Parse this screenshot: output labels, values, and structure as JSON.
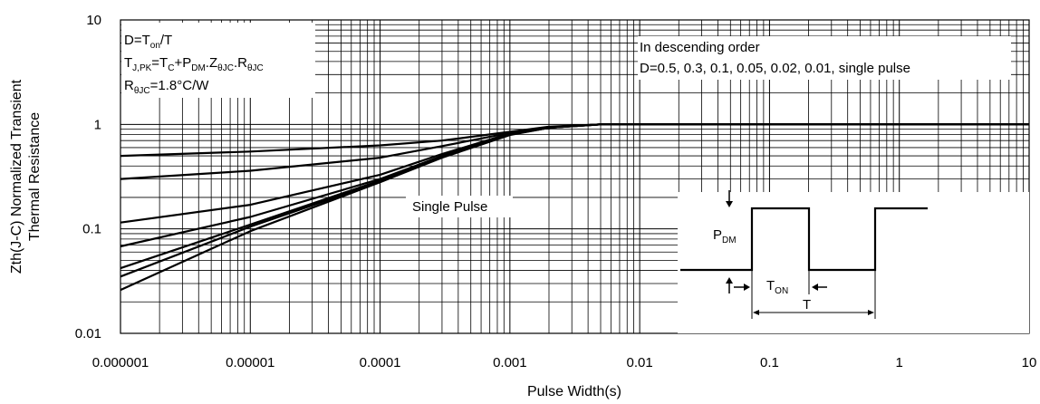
{
  "chart_data": {
    "type": "line",
    "x_scale": "log",
    "y_scale": "log",
    "xlim": [
      1e-06,
      10
    ],
    "ylim": [
      0.01,
      10
    ],
    "xlabel": "Pulse Width(s)",
    "ylabel_line1": "Zth(J-C) Normalized Transient",
    "ylabel_line2": "Thermal Resistance",
    "grid": true,
    "x_ticks": [
      {
        "v": 1e-06,
        "label": "0.000001"
      },
      {
        "v": 1e-05,
        "label": "0.00001"
      },
      {
        "v": 0.0001,
        "label": "0.0001"
      },
      {
        "v": 0.001,
        "label": "0.001"
      },
      {
        "v": 0.01,
        "label": "0.01"
      },
      {
        "v": 0.1,
        "label": "0.1"
      },
      {
        "v": 1,
        "label": "1"
      },
      {
        "v": 10,
        "label": "10"
      }
    ],
    "y_ticks": [
      {
        "v": 0.01,
        "label": "0.01"
      },
      {
        "v": 0.1,
        "label": "0.1"
      },
      {
        "v": 1,
        "label": "1"
      },
      {
        "v": 10,
        "label": "10"
      }
    ],
    "series": [
      {
        "points": [
          [
            1e-06,
            0.5
          ],
          [
            1e-05,
            0.55
          ],
          [
            0.0001,
            0.63
          ],
          [
            0.0003,
            0.7
          ],
          [
            0.001,
            0.85
          ],
          [
            0.002,
            0.95
          ],
          [
            0.005,
            1.0
          ],
          [
            10,
            1.0
          ]
        ]
      },
      {
        "points": [
          [
            1e-06,
            0.3
          ],
          [
            1e-05,
            0.36
          ],
          [
            0.0001,
            0.48
          ],
          [
            0.0003,
            0.62
          ],
          [
            0.001,
            0.83
          ],
          [
            0.002,
            0.94
          ],
          [
            0.005,
            1.0
          ],
          [
            10,
            1.0
          ]
        ]
      },
      {
        "points": [
          [
            1e-06,
            0.115
          ],
          [
            1e-05,
            0.17
          ],
          [
            0.0001,
            0.33
          ],
          [
            0.0003,
            0.52
          ],
          [
            0.001,
            0.82
          ],
          [
            0.002,
            0.94
          ],
          [
            0.005,
            1.0
          ],
          [
            10,
            1.0
          ]
        ]
      },
      {
        "points": [
          [
            1e-06,
            0.068
          ],
          [
            1e-05,
            0.13
          ],
          [
            0.0001,
            0.3
          ],
          [
            0.0003,
            0.5
          ],
          [
            0.001,
            0.81
          ],
          [
            0.002,
            0.93
          ],
          [
            0.005,
            1.0
          ],
          [
            10,
            1.0
          ]
        ]
      },
      {
        "points": [
          [
            1e-06,
            0.042
          ],
          [
            1e-05,
            0.11
          ],
          [
            0.0001,
            0.29
          ],
          [
            0.0003,
            0.49
          ],
          [
            0.001,
            0.8
          ],
          [
            0.002,
            0.93
          ],
          [
            0.005,
            1.0
          ],
          [
            10,
            1.0
          ]
        ]
      },
      {
        "points": [
          [
            1e-06,
            0.035
          ],
          [
            1e-05,
            0.105
          ],
          [
            0.0001,
            0.28
          ],
          [
            0.0003,
            0.49
          ],
          [
            0.001,
            0.8
          ],
          [
            0.002,
            0.93
          ],
          [
            0.005,
            1.0
          ],
          [
            10,
            1.0
          ]
        ]
      },
      {
        "points": [
          [
            1e-06,
            0.026
          ],
          [
            1e-05,
            0.095
          ],
          [
            0.0001,
            0.28
          ],
          [
            0.0003,
            0.48
          ],
          [
            0.001,
            0.79
          ],
          [
            0.002,
            0.93
          ],
          [
            0.005,
            1.0
          ],
          [
            10,
            1.0
          ]
        ]
      }
    ],
    "annotations": {
      "box_left": {
        "line1": {
          "a": "D=T",
          "b": "on",
          "c": "/T"
        },
        "line2": {
          "a": "T",
          "b": "J,PK",
          "c": "=T",
          "d": "C",
          "e": "+P",
          "f": "DM",
          "g": ".Z",
          "h": "θJC",
          "i": ".R",
          "j": "θJC"
        },
        "line3": {
          "a": "R",
          "b": "θJC",
          "c": "=1.8°C/W"
        }
      },
      "box_right": {
        "line1": "In descending order",
        "line2": "D=0.5, 0.3, 0.1, 0.05, 0.02, 0.01, single pulse"
      },
      "single_pulse": "Single Pulse",
      "inset": {
        "pdm": {
          "a": "P",
          "b": "DM"
        },
        "ton": {
          "a": "T",
          "b": "ON"
        },
        "t": "T"
      }
    }
  }
}
